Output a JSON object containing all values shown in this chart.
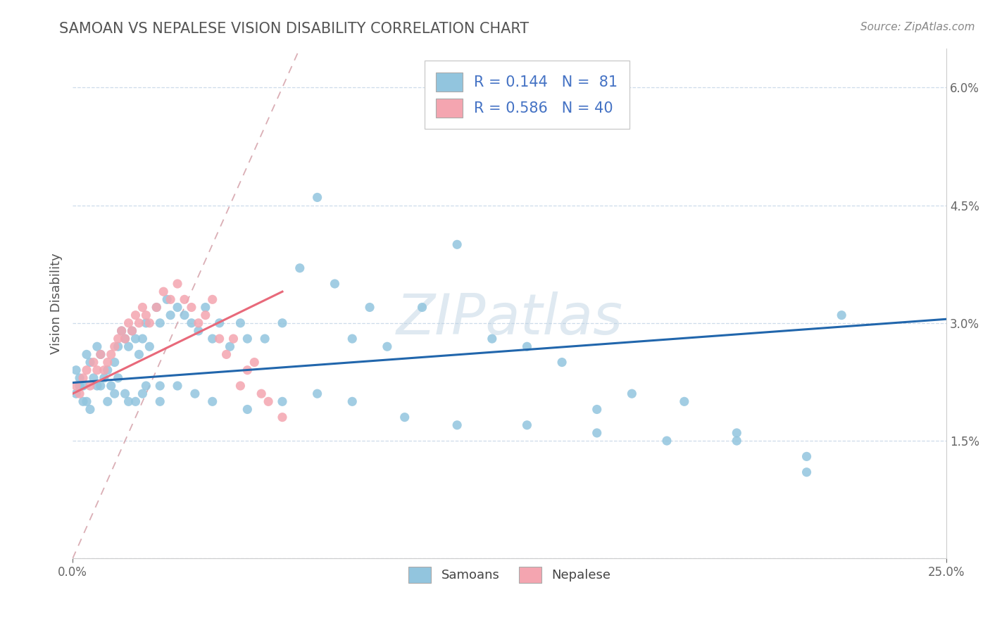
{
  "title": "SAMOAN VS NEPALESE VISION DISABILITY CORRELATION CHART",
  "source": "Source: ZipAtlas.com",
  "ylabel": "Vision Disability",
  "xlim": [
    0.0,
    0.25
  ],
  "ylim": [
    0.0,
    0.065
  ],
  "samoan_color": "#92c5de",
  "nepalese_color": "#f4a5b0",
  "samoan_line_color": "#2166ac",
  "nepalese_line_color": "#e8697a",
  "diag_line_color": "#d4a0a8",
  "watermark": "ZIPatlas",
  "samoan_x": [
    0.001,
    0.002,
    0.003,
    0.004,
    0.005,
    0.006,
    0.007,
    0.008,
    0.009,
    0.01,
    0.011,
    0.012,
    0.013,
    0.014,
    0.015,
    0.016,
    0.017,
    0.018,
    0.019,
    0.02,
    0.021,
    0.022,
    0.024,
    0.025,
    0.027,
    0.028,
    0.03,
    0.032,
    0.034,
    0.036,
    0.038,
    0.04,
    0.042,
    0.045,
    0.048,
    0.05,
    0.055,
    0.06,
    0.065,
    0.07,
    0.075,
    0.08,
    0.085,
    0.09,
    0.1,
    0.11,
    0.12,
    0.13,
    0.14,
    0.15,
    0.16,
    0.175,
    0.19,
    0.21,
    0.22,
    0.003,
    0.005,
    0.007,
    0.01,
    0.013,
    0.015,
    0.018,
    0.021,
    0.025,
    0.03,
    0.035,
    0.04,
    0.05,
    0.06,
    0.07,
    0.08,
    0.095,
    0.11,
    0.13,
    0.15,
    0.17,
    0.19,
    0.21,
    0.001,
    0.002,
    0.004,
    0.008,
    0.012,
    0.016,
    0.02,
    0.025
  ],
  "samoan_y": [
    0.024,
    0.023,
    0.022,
    0.026,
    0.025,
    0.023,
    0.027,
    0.026,
    0.023,
    0.024,
    0.022,
    0.025,
    0.027,
    0.029,
    0.028,
    0.027,
    0.029,
    0.028,
    0.026,
    0.028,
    0.03,
    0.027,
    0.032,
    0.03,
    0.033,
    0.031,
    0.032,
    0.031,
    0.03,
    0.029,
    0.032,
    0.028,
    0.03,
    0.027,
    0.03,
    0.028,
    0.028,
    0.03,
    0.037,
    0.046,
    0.035,
    0.028,
    0.032,
    0.027,
    0.032,
    0.04,
    0.028,
    0.027,
    0.025,
    0.019,
    0.021,
    0.02,
    0.016,
    0.011,
    0.031,
    0.02,
    0.019,
    0.022,
    0.02,
    0.023,
    0.021,
    0.02,
    0.022,
    0.02,
    0.022,
    0.021,
    0.02,
    0.019,
    0.02,
    0.021,
    0.02,
    0.018,
    0.017,
    0.017,
    0.016,
    0.015,
    0.015,
    0.013,
    0.021,
    0.022,
    0.02,
    0.022,
    0.021,
    0.02,
    0.021,
    0.022
  ],
  "nepalese_x": [
    0.001,
    0.002,
    0.003,
    0.004,
    0.005,
    0.006,
    0.007,
    0.008,
    0.009,
    0.01,
    0.011,
    0.012,
    0.013,
    0.014,
    0.015,
    0.016,
    0.017,
    0.018,
    0.019,
    0.02,
    0.021,
    0.022,
    0.024,
    0.026,
    0.028,
    0.03,
    0.032,
    0.034,
    0.036,
    0.038,
    0.04,
    0.042,
    0.044,
    0.046,
    0.048,
    0.05,
    0.052,
    0.054,
    0.056,
    0.06
  ],
  "nepalese_y": [
    0.022,
    0.021,
    0.023,
    0.024,
    0.022,
    0.025,
    0.024,
    0.026,
    0.024,
    0.025,
    0.026,
    0.027,
    0.028,
    0.029,
    0.028,
    0.03,
    0.029,
    0.031,
    0.03,
    0.032,
    0.031,
    0.03,
    0.032,
    0.034,
    0.033,
    0.035,
    0.033,
    0.032,
    0.03,
    0.031,
    0.033,
    0.028,
    0.026,
    0.028,
    0.022,
    0.024,
    0.025,
    0.021,
    0.02,
    0.018
  ],
  "samoan_line_x0": 0.0,
  "samoan_line_y0": 0.0224,
  "samoan_line_x1": 0.25,
  "samoan_line_y1": 0.0305,
  "nepalese_line_x0": 0.0,
  "nepalese_line_y0": 0.021,
  "nepalese_line_x1": 0.06,
  "nepalese_line_y1": 0.034,
  "diag_line_x0": 0.0,
  "diag_line_y0": 0.0,
  "diag_line_x1": 0.065,
  "diag_line_y1": 0.065
}
